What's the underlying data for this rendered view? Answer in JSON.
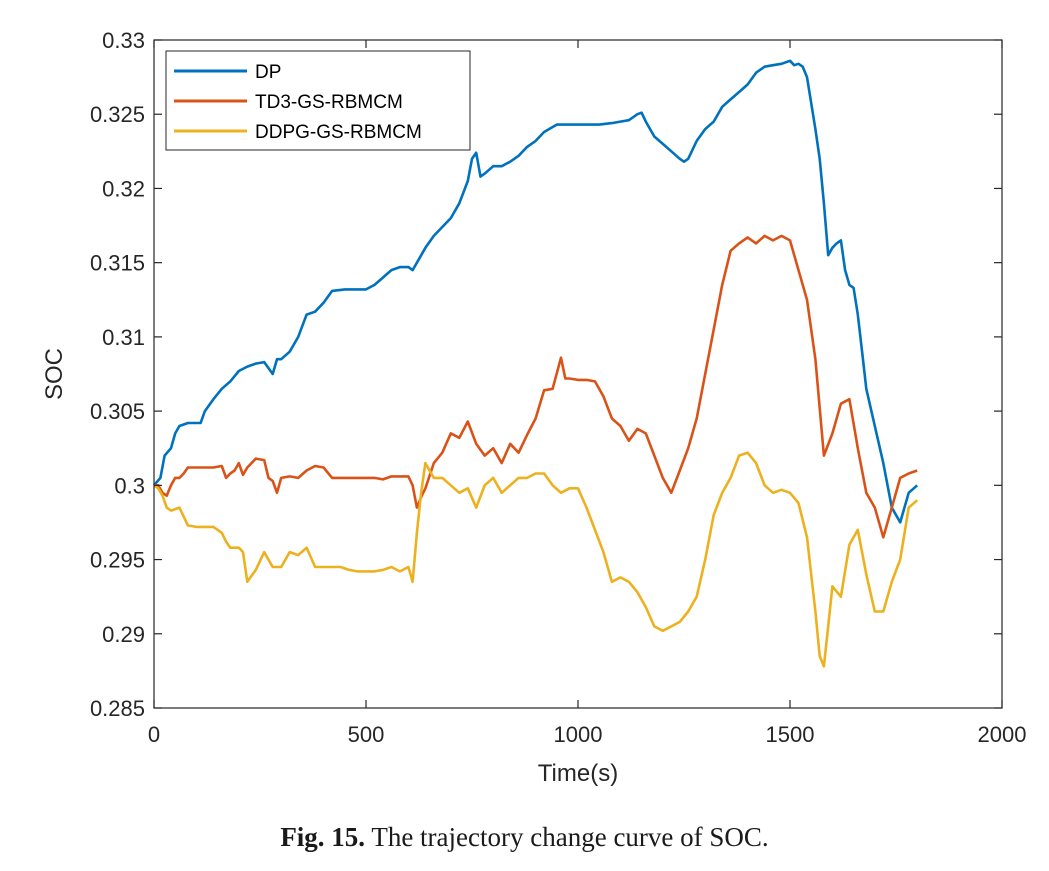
{
  "caption": {
    "label": "Fig. 15.",
    "text": "The trajectory change curve of SOC."
  },
  "chart_data": {
    "type": "line",
    "xlabel": "Time(s)",
    "ylabel": "SOC",
    "xlim": [
      0,
      2000
    ],
    "ylim": [
      0.285,
      0.33
    ],
    "xticks": [
      0,
      500,
      1000,
      1500,
      2000
    ],
    "yticks": [
      0.285,
      0.29,
      0.295,
      0.3,
      0.305,
      0.31,
      0.315,
      0.32,
      0.325,
      0.33
    ],
    "ytick_labels": [
      "0.285",
      "0.29",
      "0.295",
      "0.3",
      "0.305",
      "0.31",
      "0.315",
      "0.32",
      "0.325",
      "0.33"
    ],
    "xtick_labels": [
      "0",
      "500",
      "1000",
      "1500",
      "2000"
    ],
    "grid": false,
    "legend_position": "top-left",
    "series": [
      {
        "name": "DP",
        "color": "#0072BD",
        "x": [
          0,
          15,
          25,
          40,
          50,
          60,
          80,
          100,
          110,
          120,
          140,
          160,
          180,
          200,
          220,
          240,
          260,
          280,
          290,
          300,
          320,
          340,
          360,
          380,
          400,
          420,
          450,
          480,
          500,
          520,
          540,
          560,
          580,
          600,
          610,
          620,
          640,
          660,
          680,
          700,
          720,
          740,
          750,
          760,
          770,
          780,
          800,
          820,
          840,
          860,
          880,
          900,
          920,
          950,
          1000,
          1050,
          1080,
          1100,
          1120,
          1140,
          1150,
          1160,
          1180,
          1200,
          1220,
          1240,
          1250,
          1260,
          1280,
          1300,
          1320,
          1340,
          1360,
          1380,
          1400,
          1420,
          1440,
          1460,
          1480,
          1500,
          1510,
          1520,
          1530,
          1540,
          1560,
          1570,
          1580,
          1590,
          1600,
          1610,
          1620,
          1630,
          1640,
          1650,
          1660,
          1670,
          1680,
          1700,
          1720,
          1740,
          1760,
          1780,
          1800
        ],
        "y": [
          0.3,
          0.3005,
          0.302,
          0.3025,
          0.3035,
          0.304,
          0.3042,
          0.3042,
          0.3042,
          0.305,
          0.3058,
          0.3065,
          0.307,
          0.3077,
          0.308,
          0.3082,
          0.3083,
          0.3075,
          0.3085,
          0.3085,
          0.309,
          0.31,
          0.3115,
          0.3117,
          0.3123,
          0.3131,
          0.3132,
          0.3132,
          0.3132,
          0.3135,
          0.314,
          0.3145,
          0.3147,
          0.3147,
          0.3145,
          0.315,
          0.316,
          0.3168,
          0.3174,
          0.318,
          0.319,
          0.3205,
          0.322,
          0.3224,
          0.3208,
          0.321,
          0.3215,
          0.3215,
          0.3218,
          0.3222,
          0.3228,
          0.3232,
          0.3238,
          0.3243,
          0.3243,
          0.3243,
          0.3244,
          0.3245,
          0.3246,
          0.325,
          0.3251,
          0.3245,
          0.3235,
          0.323,
          0.3225,
          0.322,
          0.3218,
          0.322,
          0.3232,
          0.324,
          0.3245,
          0.3255,
          0.326,
          0.3265,
          0.327,
          0.3278,
          0.3282,
          0.3283,
          0.3284,
          0.3286,
          0.3283,
          0.3284,
          0.3282,
          0.3275,
          0.324,
          0.322,
          0.319,
          0.3155,
          0.316,
          0.3163,
          0.3165,
          0.3145,
          0.3135,
          0.3133,
          0.3115,
          0.309,
          0.3065,
          0.304,
          0.3015,
          0.2985,
          0.2975,
          0.2995,
          0.3
        ]
      },
      {
        "name": "TD3-GS-RBMCM",
        "color": "#D95319",
        "x": [
          0,
          10,
          20,
          30,
          40,
          50,
          60,
          70,
          80,
          100,
          120,
          140,
          160,
          170,
          180,
          190,
          200,
          210,
          220,
          240,
          260,
          270,
          280,
          290,
          300,
          320,
          340,
          360,
          380,
          400,
          420,
          440,
          460,
          480,
          500,
          520,
          540,
          560,
          580,
          600,
          610,
          620,
          630,
          640,
          660,
          680,
          700,
          720,
          740,
          760,
          780,
          800,
          820,
          840,
          860,
          880,
          900,
          920,
          940,
          960,
          970,
          980,
          1000,
          1020,
          1040,
          1060,
          1080,
          1100,
          1120,
          1140,
          1160,
          1180,
          1200,
          1220,
          1240,
          1260,
          1280,
          1300,
          1320,
          1340,
          1360,
          1380,
          1400,
          1420,
          1440,
          1460,
          1480,
          1500,
          1520,
          1540,
          1560,
          1580,
          1600,
          1620,
          1640,
          1660,
          1680,
          1700,
          1720,
          1740,
          1760,
          1780,
          1800
        ],
        "y": [
          0.3,
          0.3,
          0.2995,
          0.2993,
          0.3,
          0.3005,
          0.3005,
          0.3008,
          0.3012,
          0.3012,
          0.3012,
          0.3012,
          0.3013,
          0.3005,
          0.3008,
          0.301,
          0.3015,
          0.3007,
          0.3012,
          0.3018,
          0.3017,
          0.3005,
          0.3003,
          0.2995,
          0.3005,
          0.3006,
          0.3005,
          0.301,
          0.3013,
          0.3012,
          0.3005,
          0.3005,
          0.3005,
          0.3005,
          0.3005,
          0.3005,
          0.3004,
          0.3006,
          0.3006,
          0.3006,
          0.3,
          0.2985,
          0.2992,
          0.2998,
          0.3015,
          0.3022,
          0.3035,
          0.3032,
          0.3043,
          0.3028,
          0.302,
          0.3025,
          0.3015,
          0.3028,
          0.3022,
          0.3034,
          0.3045,
          0.3064,
          0.3065,
          0.3086,
          0.3072,
          0.3072,
          0.3071,
          0.3071,
          0.307,
          0.306,
          0.3045,
          0.304,
          0.303,
          0.3038,
          0.3035,
          0.302,
          0.3005,
          0.2995,
          0.301,
          0.3025,
          0.3045,
          0.3075,
          0.3105,
          0.3135,
          0.3158,
          0.3163,
          0.3167,
          0.3163,
          0.3168,
          0.3165,
          0.3168,
          0.3165,
          0.3145,
          0.3125,
          0.3085,
          0.302,
          0.3035,
          0.3055,
          0.3058,
          0.3025,
          0.2995,
          0.2985,
          0.2965,
          0.2985,
          0.3005,
          0.3008,
          0.301
        ]
      },
      {
        "name": "DDPG-GS-RBMCM",
        "color": "#EDB120",
        "x": [
          0,
          10,
          20,
          30,
          40,
          60,
          80,
          100,
          120,
          140,
          160,
          170,
          180,
          200,
          210,
          220,
          240,
          260,
          280,
          300,
          320,
          340,
          360,
          380,
          400,
          420,
          440,
          460,
          480,
          500,
          520,
          540,
          560,
          580,
          600,
          610,
          620,
          630,
          640,
          660,
          680,
          700,
          720,
          740,
          760,
          780,
          800,
          820,
          840,
          860,
          880,
          900,
          920,
          940,
          960,
          980,
          1000,
          1020,
          1040,
          1060,
          1080,
          1100,
          1120,
          1140,
          1160,
          1180,
          1200,
          1220,
          1240,
          1260,
          1280,
          1300,
          1320,
          1340,
          1360,
          1380,
          1400,
          1420,
          1440,
          1460,
          1480,
          1500,
          1520,
          1540,
          1560,
          1570,
          1580,
          1590,
          1600,
          1620,
          1640,
          1660,
          1680,
          1700,
          1720,
          1740,
          1760,
          1780,
          1800
        ],
        "y": [
          0.3,
          0.2998,
          0.2993,
          0.2985,
          0.2983,
          0.2985,
          0.2973,
          0.2972,
          0.2972,
          0.2972,
          0.2968,
          0.2962,
          0.2958,
          0.2958,
          0.2955,
          0.2935,
          0.2943,
          0.2955,
          0.2945,
          0.2945,
          0.2955,
          0.2953,
          0.2958,
          0.2945,
          0.2945,
          0.2945,
          0.2945,
          0.2943,
          0.2942,
          0.2942,
          0.2942,
          0.2943,
          0.2945,
          0.2942,
          0.2945,
          0.2935,
          0.2968,
          0.2995,
          0.3015,
          0.3005,
          0.3005,
          0.3,
          0.2995,
          0.2998,
          0.2985,
          0.3,
          0.3005,
          0.2995,
          0.3,
          0.3005,
          0.3005,
          0.3008,
          0.3008,
          0.3,
          0.2995,
          0.2998,
          0.2998,
          0.2985,
          0.297,
          0.2955,
          0.2935,
          0.2938,
          0.2935,
          0.2928,
          0.2918,
          0.2905,
          0.2902,
          0.2905,
          0.2908,
          0.2915,
          0.2925,
          0.295,
          0.298,
          0.2995,
          0.3005,
          0.302,
          0.3022,
          0.3015,
          0.3,
          0.2995,
          0.2997,
          0.2995,
          0.2988,
          0.2965,
          0.2915,
          0.2885,
          0.2878,
          0.2905,
          0.2932,
          0.2925,
          0.296,
          0.297,
          0.294,
          0.2915,
          0.2915,
          0.2935,
          0.295,
          0.2985,
          0.299
        ]
      }
    ]
  }
}
